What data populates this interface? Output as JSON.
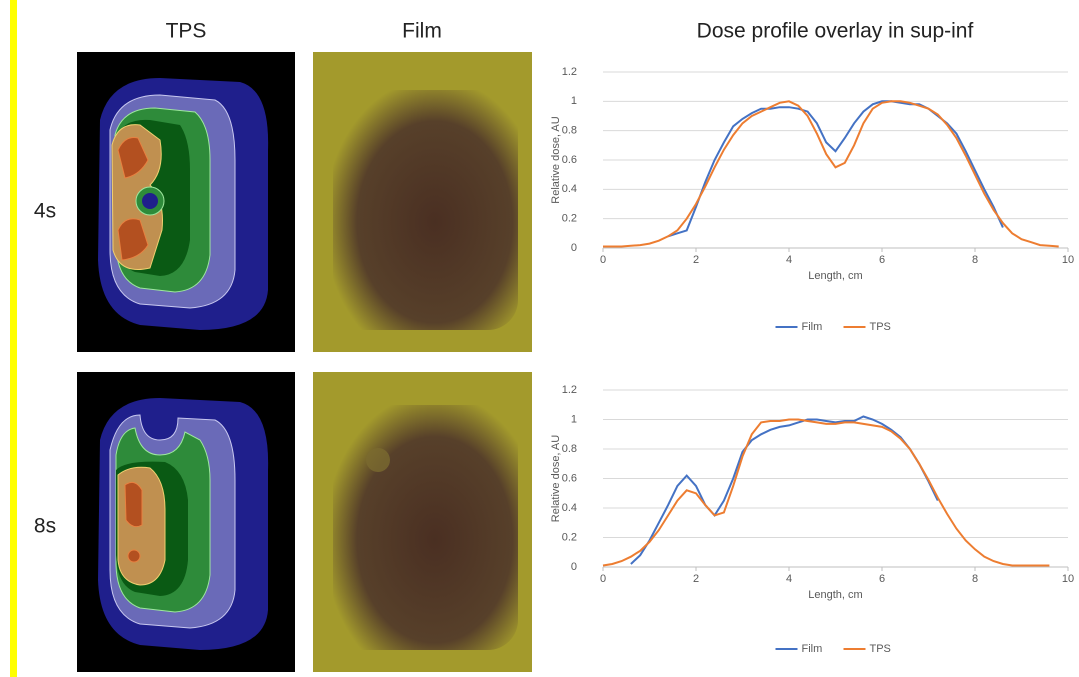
{
  "headers": [
    "TPS",
    "Film",
    "Dose profile overlay in sup-inf"
  ],
  "rows": [
    "4s",
    "8s"
  ],
  "chart_data": [
    {
      "type": "line",
      "xlabel": "Length, cm",
      "ylabel": "Relative dose, AU",
      "x": [
        0,
        0.2,
        0.4,
        0.6,
        0.8,
        1,
        1.2,
        1.4,
        1.6,
        1.8,
        2,
        2.2,
        2.4,
        2.6,
        2.8,
        3,
        3.2,
        3.4,
        3.6,
        3.8,
        4,
        4.2,
        4.4,
        4.6,
        4.8,
        5,
        5.2,
        5.4,
        5.6,
        5.8,
        6,
        6.2,
        6.4,
        6.6,
        6.8,
        7,
        7.2,
        7.4,
        7.6,
        7.8,
        8,
        8.2,
        8.4,
        8.6,
        8.8,
        9,
        9.2,
        9.4,
        9.6,
        9.8,
        10
      ],
      "series": [
        {
          "name": "Film",
          "color": "#4472c4",
          "values": [
            null,
            null,
            null,
            null,
            null,
            null,
            null,
            0.08,
            0.1,
            0.12,
            0.28,
            0.45,
            0.6,
            0.72,
            0.83,
            0.88,
            0.92,
            0.95,
            0.95,
            0.96,
            0.96,
            0.95,
            0.93,
            0.85,
            0.72,
            0.66,
            0.75,
            0.85,
            0.93,
            0.98,
            1,
            1,
            0.99,
            0.98,
            0.98,
            0.95,
            0.9,
            0.85,
            0.78,
            0.66,
            0.53,
            0.4,
            0.28,
            0.14,
            null,
            null,
            null,
            null,
            null,
            null,
            null
          ]
        },
        {
          "name": "TPS",
          "color": "#ed7d31",
          "values": [
            0.01,
            0.01,
            0.01,
            0.015,
            0.02,
            0.03,
            0.05,
            0.08,
            0.12,
            0.2,
            0.3,
            0.42,
            0.55,
            0.67,
            0.77,
            0.85,
            0.9,
            0.93,
            0.96,
            0.99,
            1,
            0.97,
            0.9,
            0.78,
            0.64,
            0.55,
            0.58,
            0.7,
            0.85,
            0.95,
            0.99,
            1,
            1,
            0.99,
            0.97,
            0.95,
            0.91,
            0.84,
            0.75,
            0.63,
            0.5,
            0.37,
            0.26,
            0.17,
            0.1,
            0.06,
            0.04,
            0.02,
            0.015,
            0.01,
            null
          ]
        }
      ],
      "xlim": [
        0,
        10
      ],
      "xticks": [
        0,
        2,
        4,
        6,
        8,
        10
      ],
      "ylim": [
        0,
        1.2
      ],
      "yticks": [
        0,
        0.2,
        0.4,
        0.6,
        0.8,
        1,
        1.2
      ],
      "grid": true,
      "legend": "bottom"
    },
    {
      "type": "line",
      "xlabel": "Length, cm",
      "ylabel": "Relative dose, AU",
      "x": [
        0,
        0.2,
        0.4,
        0.6,
        0.8,
        1,
        1.2,
        1.4,
        1.6,
        1.8,
        2,
        2.2,
        2.4,
        2.6,
        2.8,
        3,
        3.2,
        3.4,
        3.6,
        3.8,
        4,
        4.2,
        4.4,
        4.6,
        4.8,
        5,
        5.2,
        5.4,
        5.6,
        5.8,
        6,
        6.2,
        6.4,
        6.6,
        6.8,
        7,
        7.2,
        7.4,
        7.6,
        7.8,
        8,
        8.2,
        8.4,
        8.6,
        8.8,
        9,
        9.2,
        9.4,
        9.6,
        9.8,
        10
      ],
      "series": [
        {
          "name": "Film",
          "color": "#4472c4",
          "values": [
            null,
            null,
            null,
            0.02,
            0.08,
            0.18,
            0.3,
            0.42,
            0.55,
            0.62,
            0.55,
            0.42,
            0.35,
            0.45,
            0.6,
            0.78,
            0.86,
            0.9,
            0.93,
            0.95,
            0.96,
            0.98,
            1,
            1,
            0.99,
            0.98,
            0.99,
            0.99,
            1.02,
            1,
            0.97,
            0.93,
            0.88,
            0.8,
            0.7,
            0.58,
            0.45,
            null,
            null,
            null,
            null,
            null,
            null,
            null,
            null,
            null,
            null,
            null,
            null,
            null,
            null
          ]
        },
        {
          "name": "TPS",
          "color": "#ed7d31",
          "values": [
            0.01,
            0.02,
            0.04,
            0.07,
            0.11,
            0.17,
            0.25,
            0.35,
            0.45,
            0.52,
            0.5,
            0.42,
            0.35,
            0.37,
            0.55,
            0.75,
            0.9,
            0.98,
            0.99,
            0.99,
            1,
            1,
            0.99,
            0.98,
            0.97,
            0.97,
            0.98,
            0.98,
            0.97,
            0.96,
            0.95,
            0.92,
            0.87,
            0.8,
            0.7,
            0.59,
            0.47,
            0.36,
            0.26,
            0.18,
            0.12,
            0.07,
            0.04,
            0.02,
            0.01,
            0.01,
            0.01,
            0.01,
            0.01,
            null,
            null
          ]
        }
      ],
      "xlim": [
        0,
        10
      ],
      "xticks": [
        0,
        2,
        4,
        6,
        8,
        10
      ],
      "ylim": [
        0,
        1.2
      ],
      "yticks": [
        0,
        0.2,
        0.4,
        0.6,
        0.8,
        1,
        1.2
      ],
      "grid": true,
      "legend": "bottom"
    }
  ]
}
